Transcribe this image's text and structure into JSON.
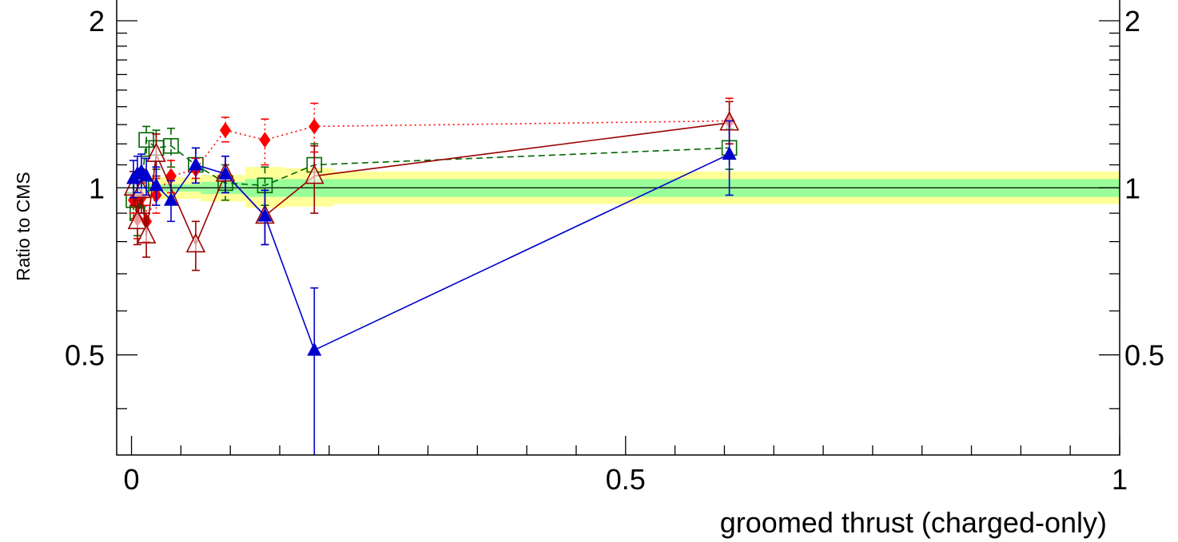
{
  "chart_data": {
    "type": "scatter",
    "xlabel": "groomed thrust (charged-only)",
    "ylabel": "Ratio to CMS",
    "xlim": [
      -0.015,
      1.0
    ],
    "ylim": [
      0.33,
      2.18
    ],
    "y_scale": "log",
    "x_ticks": [
      {
        "value": 0,
        "label": "0"
      },
      {
        "value": 0.5,
        "label": "0.5"
      },
      {
        "value": 1,
        "label": "1"
      }
    ],
    "y_ticks": [
      {
        "value": 0.5,
        "label": "0.5"
      },
      {
        "value": 1,
        "label": "1"
      },
      {
        "value": 2,
        "label": "2"
      }
    ],
    "reference_line": 1,
    "bands": [
      {
        "kind": "outer",
        "color": "#ffff99",
        "segments": [
          {
            "x0": 0.0,
            "x1": 0.07,
            "lo": 0.955,
            "hi": 1.045
          },
          {
            "x0": 0.07,
            "x1": 0.115,
            "lo": 0.945,
            "hi": 1.055
          },
          {
            "x0": 0.115,
            "x1": 0.155,
            "lo": 0.92,
            "hi": 1.09
          },
          {
            "x0": 0.155,
            "x1": 0.205,
            "lo": 0.925,
            "hi": 1.085
          },
          {
            "x0": 0.205,
            "x1": 1.0,
            "lo": 0.935,
            "hi": 1.07
          }
        ]
      },
      {
        "kind": "inner",
        "color": "#99ff99",
        "segments": [
          {
            "x0": 0.0,
            "x1": 0.07,
            "lo": 0.985,
            "hi": 1.015
          },
          {
            "x0": 0.07,
            "x1": 0.115,
            "lo": 0.975,
            "hi": 1.025
          },
          {
            "x0": 0.115,
            "x1": 1.0,
            "lo": 0.963,
            "hi": 1.037
          }
        ]
      }
    ],
    "series": [
      {
        "color": "#006600",
        "line": "dashed",
        "marker": "open-square",
        "points": [
          {
            "x": 0.002,
            "y": 0.95,
            "elo": 0.88,
            "ehi": 1.02
          },
          {
            "x": 0.006,
            "y": 0.9,
            "elo": 0.82,
            "ehi": 0.98
          },
          {
            "x": 0.01,
            "y": 1.0,
            "elo": 0.92,
            "ehi": 1.08
          },
          {
            "x": 0.015,
            "y": 1.22,
            "elo": 1.14,
            "ehi": 1.29
          },
          {
            "x": 0.025,
            "y": 1.18,
            "elo": 1.08,
            "ehi": 1.27
          },
          {
            "x": 0.04,
            "y": 1.19,
            "elo": 1.09,
            "ehi": 1.28
          },
          {
            "x": 0.065,
            "y": 1.1,
            "elo": 1.02,
            "ehi": 1.18
          },
          {
            "x": 0.095,
            "y": 1.02,
            "elo": 0.95,
            "ehi": 1.1
          },
          {
            "x": 0.135,
            "y": 1.01,
            "elo": 0.93,
            "ehi": 1.09
          },
          {
            "x": 0.185,
            "y": 1.1,
            "elo": 1.0,
            "ehi": 1.2
          },
          {
            "x": 0.605,
            "y": 1.18,
            "elo": 1.08,
            "ehi": 1.28
          }
        ]
      },
      {
        "color": "#ff0000",
        "line": "dotted",
        "marker": "filled-diamond",
        "points": [
          {
            "x": 0.002,
            "y": 0.95,
            "elo": 0.9,
            "ehi": 1.0
          },
          {
            "x": 0.006,
            "y": 0.88,
            "elo": 0.81,
            "ehi": 0.94
          },
          {
            "x": 0.01,
            "y": 0.96,
            "elo": 0.9,
            "ehi": 1.02
          },
          {
            "x": 0.015,
            "y": 0.87,
            "elo": 0.8,
            "ehi": 0.93
          },
          {
            "x": 0.025,
            "y": 0.97,
            "elo": 0.9,
            "ehi": 1.04
          },
          {
            "x": 0.04,
            "y": 1.05,
            "elo": 0.98,
            "ehi": 1.12
          },
          {
            "x": 0.065,
            "y": 1.08,
            "elo": 1.04,
            "ehi": 1.13
          },
          {
            "x": 0.095,
            "y": 1.27,
            "elo": 1.21,
            "ehi": 1.34
          },
          {
            "x": 0.135,
            "y": 1.22,
            "elo": 1.1,
            "ehi": 1.33
          },
          {
            "x": 0.185,
            "y": 1.29,
            "elo": 1.16,
            "ehi": 1.42
          },
          {
            "x": 0.605,
            "y": 1.32,
            "elo": 1.2,
            "ehi": 1.45
          }
        ]
      },
      {
        "color": "#990000",
        "line": "solid",
        "marker": "open-triangle",
        "points": [
          {
            "x": 0.002,
            "y": 1.0,
            "elo": 0.93,
            "ehi": 1.07
          },
          {
            "x": 0.006,
            "y": 0.87,
            "elo": 0.79,
            "ehi": 0.95
          },
          {
            "x": 0.01,
            "y": 0.99,
            "elo": 0.9,
            "ehi": 1.08
          },
          {
            "x": 0.015,
            "y": 0.82,
            "elo": 0.75,
            "ehi": 0.9
          },
          {
            "x": 0.025,
            "y": 1.15,
            "elo": 1.05,
            "ehi": 1.25
          },
          {
            "x": 0.065,
            "y": 0.79,
            "elo": 0.71,
            "ehi": 0.87
          },
          {
            "x": 0.095,
            "y": 1.06,
            "elo": 0.98,
            "ehi": 1.14
          },
          {
            "x": 0.135,
            "y": 0.89,
            "elo": 0.79,
            "ehi": 0.99
          },
          {
            "x": 0.185,
            "y": 1.05,
            "elo": 0.9,
            "ehi": 1.19
          },
          {
            "x": 0.605,
            "y": 1.31,
            "elo": 1.2,
            "ehi": 1.43
          }
        ]
      },
      {
        "color": "#0000cc",
        "line": "solid",
        "marker": "filled-triangle",
        "points": [
          {
            "x": 0.002,
            "y": 1.04,
            "elo": 0.96,
            "ehi": 1.12
          },
          {
            "x": 0.006,
            "y": 1.06,
            "elo": 0.98,
            "ehi": 1.14
          },
          {
            "x": 0.01,
            "y": 1.07,
            "elo": 1.0,
            "ehi": 1.15
          },
          {
            "x": 0.015,
            "y": 1.05,
            "elo": 0.97,
            "ehi": 1.13
          },
          {
            "x": 0.025,
            "y": 1.01,
            "elo": 0.93,
            "ehi": 1.09
          },
          {
            "x": 0.04,
            "y": 0.95,
            "elo": 0.87,
            "ehi": 1.03
          },
          {
            "x": 0.065,
            "y": 1.1,
            "elo": 1.02,
            "ehi": 1.18
          },
          {
            "x": 0.095,
            "y": 1.06,
            "elo": 0.98,
            "ehi": 1.14
          },
          {
            "x": 0.135,
            "y": 0.89,
            "elo": 0.79,
            "ehi": 0.99
          },
          {
            "x": 0.185,
            "y": 0.51,
            "elo": 0.33,
            "ehi": 0.66
          },
          {
            "x": 0.605,
            "y": 1.15,
            "elo": 0.97,
            "ehi": 1.32
          }
        ]
      }
    ]
  }
}
